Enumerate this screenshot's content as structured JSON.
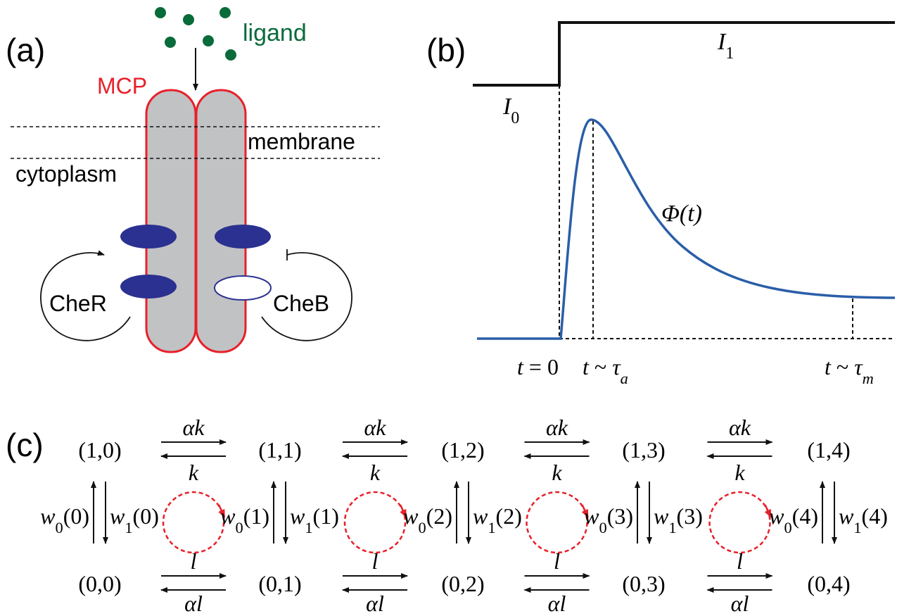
{
  "panel_a": {
    "label": "(a)",
    "ligand": "ligand",
    "mcp": "MCP",
    "membrane": "membrane",
    "cytoplasm": "cytoplasm",
    "cheR": "CheR",
    "cheB": "CheB"
  },
  "panel_b": {
    "label": "(b)",
    "I0": {
      "symbol": "I",
      "sub": "0"
    },
    "I1": {
      "symbol": "I",
      "sub": "1"
    },
    "response": {
      "symbol": "Φ",
      "arg": "(t)"
    },
    "t_zero": {
      "variable": "t",
      "relation": "= 0"
    },
    "t_a": {
      "variable": "t",
      "relation": "~",
      "tau": "τ",
      "sub": "a"
    },
    "t_m": {
      "variable": "t",
      "relation": "~",
      "tau": "τ",
      "sub": "m"
    }
  },
  "panel_c": {
    "label": "(c)",
    "top_states": [
      "(1,0)",
      "(1,1)",
      "(1,2)",
      "(1,3)",
      "(1,4)"
    ],
    "bottom_states": [
      "(0,0)",
      "(0,1)",
      "(0,2)",
      "(0,3)",
      "(0,4)"
    ],
    "transitions": [
      {
        "top_forward": "αk",
        "top_backward": "k",
        "bottom_forward": "l",
        "bottom_backward": "αl"
      },
      {
        "top_forward": "αk",
        "top_backward": "k",
        "bottom_forward": "l",
        "bottom_backward": "αl"
      },
      {
        "top_forward": "αk",
        "top_backward": "k",
        "bottom_forward": "l",
        "bottom_backward": "αl"
      },
      {
        "top_forward": "αk",
        "top_backward": "k",
        "bottom_forward": "l",
        "bottom_backward": "αl"
      }
    ],
    "w0": [
      {
        "symbol": "w",
        "sub": "0",
        "arg": "(0)"
      },
      {
        "symbol": "w",
        "sub": "0",
        "arg": "(1)"
      },
      {
        "symbol": "w",
        "sub": "0",
        "arg": "(2)"
      },
      {
        "symbol": "w",
        "sub": "0",
        "arg": "(3)"
      },
      {
        "symbol": "w",
        "sub": "0",
        "arg": "(4)"
      }
    ],
    "w1": [
      {
        "symbol": "w",
        "sub": "1",
        "arg": "(0)"
      },
      {
        "symbol": "w",
        "sub": "1",
        "arg": "(1)"
      },
      {
        "symbol": "w",
        "sub": "1",
        "arg": "(2)"
      },
      {
        "symbol": "w",
        "sub": "1",
        "arg": "(3)"
      },
      {
        "symbol": "w",
        "sub": "1",
        "arg": "(4)"
      }
    ]
  }
}
